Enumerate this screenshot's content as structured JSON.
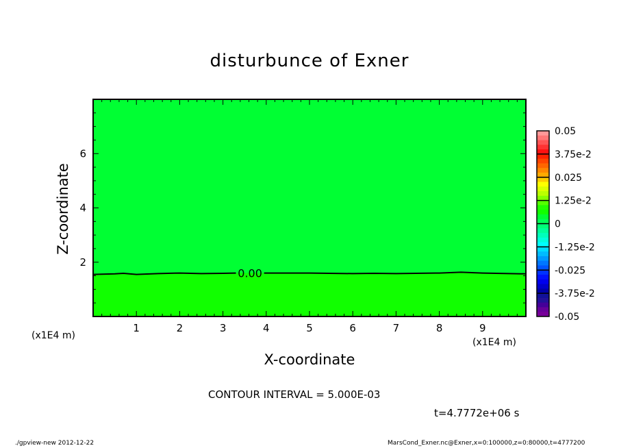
{
  "chart_data": {
    "type": "contour",
    "title": "disturbunce of Exner",
    "xlabel": "X-coordinate",
    "ylabel": "Z-coordinate",
    "x_unit": "(x1E4 m)",
    "xlim": [
      0,
      10
    ],
    "ylim": [
      0,
      8
    ],
    "xticks": [
      "1",
      "2",
      "3",
      "4",
      "5",
      "6",
      "7",
      "8",
      "9"
    ],
    "yticks": [
      "2",
      "4",
      "6"
    ],
    "contour_interval": "CONTOUR INTERVAL = 5.000E-03",
    "contour_label": "0.00",
    "contour_zero_line": {
      "x": [
        0,
        0.5,
        0.7,
        1.0,
        1.5,
        2.0,
        2.5,
        3.0,
        3.5,
        4.0,
        5.0,
        6.0,
        6.5,
        7.0,
        8.0,
        8.5,
        9.0,
        10.0
      ],
      "z": [
        1.55,
        1.57,
        1.59,
        1.55,
        1.58,
        1.6,
        1.58,
        1.59,
        1.6,
        1.6,
        1.6,
        1.58,
        1.59,
        1.58,
        1.6,
        1.63,
        1.6,
        1.57
      ]
    },
    "fill_above": "#00ff33",
    "fill_below": "#11ff00",
    "colorbar": {
      "min": -0.05,
      "max": 0.05,
      "labels": [
        "0.05",
        "3.75e-2",
        "0.025",
        "1.25e-2",
        "0",
        "-1.25e-2",
        "-0.025",
        "-3.75e-2",
        "-0.05"
      ],
      "colors": [
        "#ff9999",
        "#ff7777",
        "#ff5555",
        "#ff3333",
        "#ff1111",
        "#ff2200",
        "#ff4400",
        "#ff6600",
        "#ff8800",
        "#ffaa00",
        "#ffcc00",
        "#ffff00",
        "#ddff00",
        "#bbff00",
        "#88ff00",
        "#55ff00",
        "#22ff00",
        "#11ff00",
        "#00ff33",
        "#00ff55",
        "#00ff77",
        "#00ff99",
        "#00ffbb",
        "#00ffdd",
        "#00ffff",
        "#00ddff",
        "#00bbff",
        "#0099ff",
        "#0077ff",
        "#0055ff",
        "#0033ff",
        "#0011ff",
        "#0000ee",
        "#0000cc",
        "#0000aa",
        "#111199",
        "#221199",
        "#440099",
        "#660099",
        "#770099"
      ]
    },
    "time": "t=4.7772e+06 s"
  },
  "footer": {
    "left": "./gpview-new  2012-12-22",
    "right": "MarsCond_Exner.nc@Exner,x=0:100000,z=0:80000,t=4777200"
  }
}
